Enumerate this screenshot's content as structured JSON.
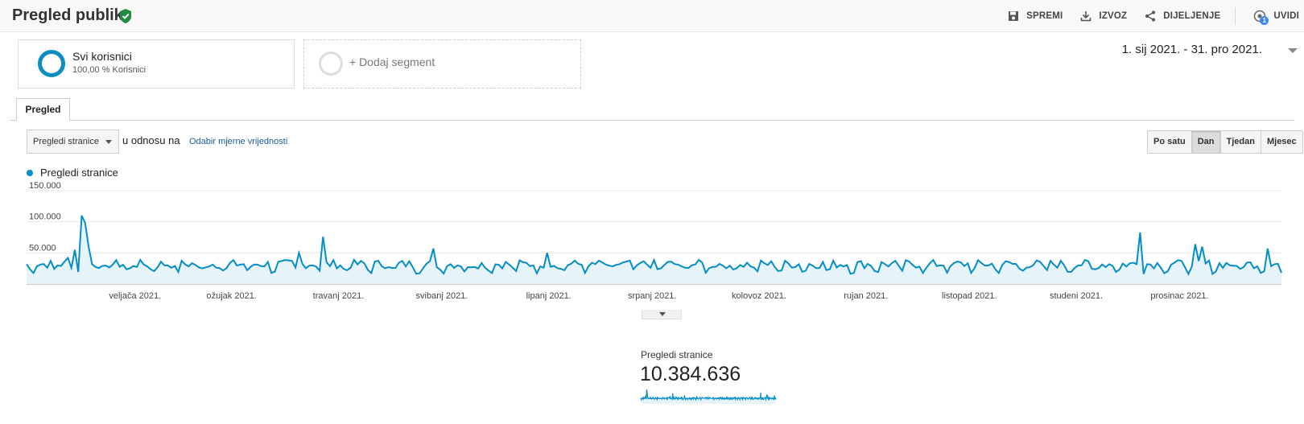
{
  "header": {
    "title": "Pregled publike",
    "actions": {
      "save": "SPREMI",
      "export": "IZVOZ",
      "share": "DIJELJENJE",
      "insights": "UVIDI",
      "insights_count": "1"
    }
  },
  "segments": {
    "all_users": {
      "name": "Svi korisnici",
      "sub": "100,00 % Korisnici"
    },
    "add_segment": "+ Dodaj segment"
  },
  "date_range": "1. sij 2021. - 31. pro 2021.",
  "tabs": {
    "overview": "Pregled"
  },
  "controls": {
    "metric": "Pregledi stranice",
    "versus": "u odnosu na",
    "compare_link": "Odabir mjerne vrijednosti",
    "granularity": [
      "Po satu",
      "Dan",
      "Tjedan",
      "Mjesec"
    ],
    "granularity_selected": "Dan"
  },
  "colors": {
    "series": "#058dc7",
    "fill": "#e6f4fa",
    "accent_ring": "#0f8dbf",
    "verified": "#1e8e3e"
  },
  "chart_data": {
    "type": "area",
    "series": [
      {
        "name": "Pregledi stranice"
      }
    ],
    "y_ticks": [
      "150.000",
      "100.000",
      "50.000"
    ],
    "ylim": [
      0,
      150000
    ],
    "x_labels": [
      "veljača 2021.",
      "ožujak 2021.",
      "travanj 2021.",
      "svibanj 2021.",
      "lipanj 2021.",
      "srpanj 2021.",
      "kolovoz 2021.",
      "rujan 2021.",
      "listopad 2021.",
      "studeni 2021.",
      "prosinac 2021."
    ],
    "x_range": [
      "2021-01-01",
      "2021-12-31"
    ],
    "baseline": 28000,
    "peaks": [
      {
        "date": "2021-01-10",
        "value": 30000
      },
      {
        "date": "2021-01-13",
        "value": 42000
      },
      {
        "date": "2021-01-15",
        "value": 55000
      },
      {
        "date": "2021-01-17",
        "value": 110000
      },
      {
        "date": "2021-01-18",
        "value": 98000
      },
      {
        "date": "2021-01-19",
        "value": 60000
      },
      {
        "date": "2021-03-21",
        "value": 50000
      },
      {
        "date": "2021-03-28",
        "value": 76000
      },
      {
        "date": "2021-04-29",
        "value": 57000
      },
      {
        "date": "2021-06-01",
        "value": 50000
      },
      {
        "date": "2021-11-20",
        "value": 83000
      },
      {
        "date": "2021-12-06",
        "value": 64000
      },
      {
        "date": "2021-12-08",
        "value": 60000
      },
      {
        "date": "2021-12-27",
        "value": 57000
      },
      {
        "date": "2021-12-31",
        "value": 18000
      }
    ],
    "grid": true
  },
  "summary": {
    "label": "Pregledi stranice",
    "value": "10.384.636"
  }
}
